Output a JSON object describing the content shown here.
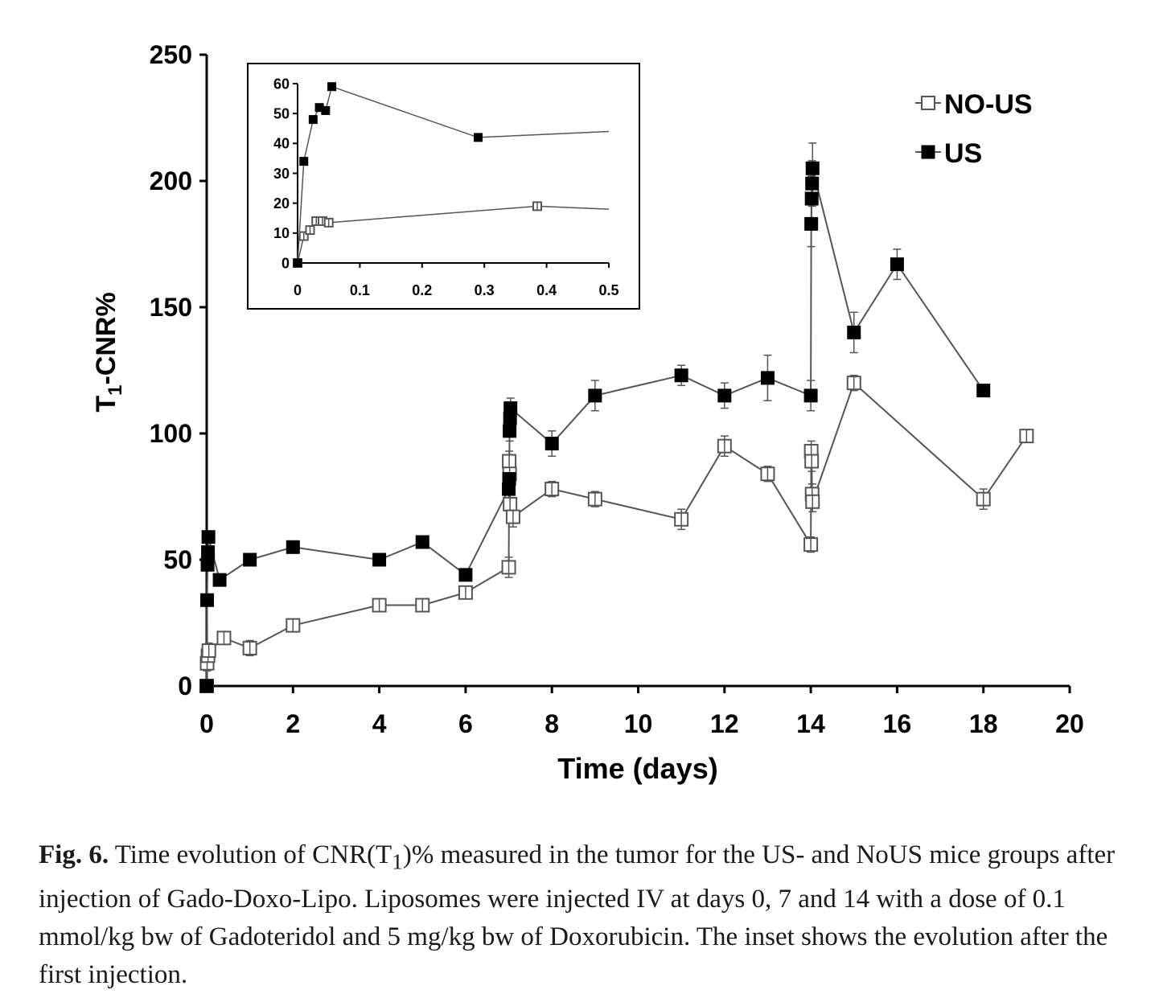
{
  "chart_data": [
    {
      "type": "scatter",
      "xlabel": "Time (days)",
      "ylabel": "T1-CNR%",
      "ylabel_main": "T",
      "ylabel_sub": "1",
      "ylabel_rest": "-CNR%",
      "xlim": [
        0,
        20
      ],
      "ylim": [
        0,
        250
      ],
      "xticks": [
        "0",
        "2",
        "4",
        "6",
        "8",
        "10",
        "12",
        "14",
        "16",
        "18",
        "20"
      ],
      "yticks": [
        "0",
        "50",
        "100",
        "150",
        "200",
        "250"
      ],
      "grid": false,
      "legend_position": "top-right",
      "legend": [
        "NO-US",
        "US"
      ],
      "series": [
        {
          "name": "NO-US",
          "marker": "open-square",
          "points": [
            {
              "x": 0,
              "y": 0,
              "err": 0
            },
            {
              "x": 0.01,
              "y": 9,
              "err": 3
            },
            {
              "x": 0.03,
              "y": 12,
              "err": 3
            },
            {
              "x": 0.05,
              "y": 14,
              "err": 3
            },
            {
              "x": 0.4,
              "y": 19,
              "err": 2
            },
            {
              "x": 1,
              "y": 15,
              "err": 3
            },
            {
              "x": 2,
              "y": 24,
              "err": 2
            },
            {
              "x": 4,
              "y": 32,
              "err": 2
            },
            {
              "x": 5,
              "y": 32,
              "err": 2
            },
            {
              "x": 6,
              "y": 37,
              "err": 2
            },
            {
              "x": 7,
              "y": 47,
              "err": 4
            },
            {
              "x": 7.01,
              "y": 89,
              "err": 4
            },
            {
              "x": 7.02,
              "y": 84,
              "err": 4
            },
            {
              "x": 7.03,
              "y": 72,
              "err": 4
            },
            {
              "x": 7.1,
              "y": 67,
              "err": 4
            },
            {
              "x": 8,
              "y": 78,
              "err": 3
            },
            {
              "x": 9,
              "y": 74,
              "err": 3
            },
            {
              "x": 11,
              "y": 66,
              "err": 4
            },
            {
              "x": 12,
              "y": 95,
              "err": 4
            },
            {
              "x": 13,
              "y": 84,
              "err": 3
            },
            {
              "x": 14,
              "y": 56,
              "err": 3
            },
            {
              "x": 14.01,
              "y": 93,
              "err": 4
            },
            {
              "x": 14.02,
              "y": 89,
              "err": 4
            },
            {
              "x": 14.03,
              "y": 76,
              "err": 4
            },
            {
              "x": 14.04,
              "y": 73,
              "err": 4
            },
            {
              "x": 15,
              "y": 120,
              "err": 3
            },
            {
              "x": 18,
              "y": 74,
              "err": 4
            },
            {
              "x": 19,
              "y": 99,
              "err": 2
            }
          ]
        },
        {
          "name": "US",
          "marker": "filled-square",
          "points": [
            {
              "x": 0,
              "y": 0,
              "err": 0
            },
            {
              "x": 0.01,
              "y": 34,
              "err": 2
            },
            {
              "x": 0.02,
              "y": 48,
              "err": 2
            },
            {
              "x": 0.03,
              "y": 53,
              "err": 2
            },
            {
              "x": 0.04,
              "y": 59,
              "err": 2
            },
            {
              "x": 0.3,
              "y": 42,
              "err": 2
            },
            {
              "x": 1,
              "y": 50,
              "err": 2
            },
            {
              "x": 2,
              "y": 55,
              "err": 2
            },
            {
              "x": 4,
              "y": 50,
              "err": 2
            },
            {
              "x": 5,
              "y": 57,
              "err": 2
            },
            {
              "x": 6,
              "y": 44,
              "err": 2
            },
            {
              "x": 7,
              "y": 78,
              "err": 4
            },
            {
              "x": 7.01,
              "y": 82,
              "err": 4
            },
            {
              "x": 7.02,
              "y": 101,
              "err": 4
            },
            {
              "x": 7.03,
              "y": 106,
              "err": 4
            },
            {
              "x": 7.04,
              "y": 110,
              "err": 4
            },
            {
              "x": 8,
              "y": 96,
              "err": 5
            },
            {
              "x": 9,
              "y": 115,
              "err": 6
            },
            {
              "x": 11,
              "y": 123,
              "err": 4
            },
            {
              "x": 12,
              "y": 115,
              "err": 5
            },
            {
              "x": 13,
              "y": 122,
              "err": 9
            },
            {
              "x": 14,
              "y": 115,
              "err": 6
            },
            {
              "x": 14.01,
              "y": 183,
              "err": 9
            },
            {
              "x": 14.02,
              "y": 193,
              "err": 9
            },
            {
              "x": 14.03,
              "y": 199,
              "err": 9
            },
            {
              "x": 14.04,
              "y": 205,
              "err": 10
            },
            {
              "x": 15,
              "y": 140,
              "err": 8
            },
            {
              "x": 16,
              "y": 167,
              "err": 6
            },
            {
              "x": 18,
              "y": 117,
              "err": 2
            }
          ]
        }
      ]
    },
    {
      "type": "scatter",
      "role": "inset",
      "xlim": [
        0,
        0.5
      ],
      "ylim": [
        0,
        60
      ],
      "xticks": [
        "0",
        "0.1",
        "0.2",
        "0.3",
        "0.4",
        "0.5"
      ],
      "yticks": [
        "0",
        "10",
        "20",
        "30",
        "40",
        "50",
        "60"
      ],
      "grid": false,
      "series": [
        {
          "name": "NO-US",
          "marker": "open-square",
          "points": [
            {
              "x": 0,
              "y": 0
            },
            {
              "x": 0.01,
              "y": 9
            },
            {
              "x": 0.02,
              "y": 11
            },
            {
              "x": 0.03,
              "y": 14
            },
            {
              "x": 0.04,
              "y": 14
            },
            {
              "x": 0.05,
              "y": 13.5
            },
            {
              "x": 0.385,
              "y": 19
            }
          ],
          "trend_end": {
            "x": 0.5,
            "y": 18
          }
        },
        {
          "name": "US",
          "marker": "filled-square",
          "points": [
            {
              "x": 0,
              "y": 0
            },
            {
              "x": 0.01,
              "y": 34
            },
            {
              "x": 0.025,
              "y": 48
            },
            {
              "x": 0.035,
              "y": 52
            },
            {
              "x": 0.045,
              "y": 51
            },
            {
              "x": 0.055,
              "y": 59
            },
            {
              "x": 0.29,
              "y": 42
            }
          ],
          "trend_end": {
            "x": 0.5,
            "y": 44
          }
        }
      ]
    }
  ],
  "caption": {
    "label": "Fig. 6.",
    "text_1": " Time evolution of CNR(T",
    "sub": "1",
    "text_2": ")% measured in the tumor for the US- and NoUS mice groups after injection of Gado-Doxo-Lipo. Liposomes were injected IV at days 0, 7 and 14 with a dose of 0.1 mmol/kg bw of Gadoteridol and 5 mg/kg bw of Doxorubicin. The inset shows the evolution after the first injection."
  },
  "colors": {
    "axis": "#000000",
    "line": "#555555",
    "open_marker_stroke": "#555555",
    "filled_marker": "#000000",
    "caption_text": "#1a1a1a"
  }
}
